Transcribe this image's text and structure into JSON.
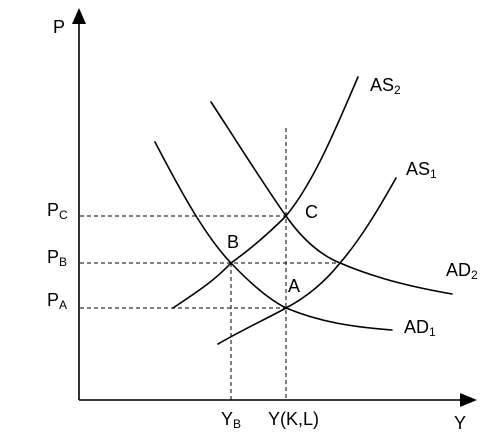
{
  "axes": {
    "y_label": "P",
    "x_label": "Y"
  },
  "price_ticks": {
    "pc": {
      "main": "P",
      "sub": "C"
    },
    "pb": {
      "main": "P",
      "sub": "B"
    },
    "pa": {
      "main": "P",
      "sub": "A"
    }
  },
  "output_ticks": {
    "yb": {
      "main": "Y",
      "sub": "B"
    },
    "ykl": "Y(K,L)"
  },
  "curves": {
    "as2": {
      "main": "AS",
      "sub": "2"
    },
    "as1": {
      "main": "AS",
      "sub": "1"
    },
    "ad2": {
      "main": "AD",
      "sub": "2"
    },
    "ad1": {
      "main": "AD",
      "sub": "1"
    }
  },
  "points": {
    "a": "A",
    "b": "B",
    "c": "C"
  }
}
